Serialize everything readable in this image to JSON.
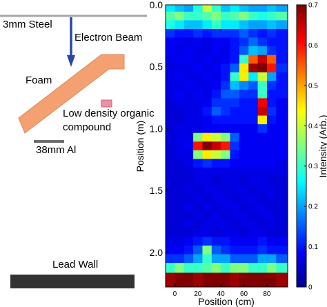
{
  "diagram": {
    "steel_label": "3mm Steel",
    "beam_label": "Electron Beam",
    "foam_label": "Foam",
    "target_label_line1": "Low density organic",
    "target_label_line2": "compound",
    "al_label": "38mm Al",
    "lead_label": "Lead Wall",
    "colors": {
      "steel": "#a6a6a6",
      "beam": "#2a46a8",
      "foam": "#f4a070",
      "target": "#ef8fa4",
      "plate": "#6d6d6d",
      "lead": "#333333"
    }
  },
  "chart_data": {
    "type": "heatmap",
    "xlabel": "Position (cm)",
    "ylabel": "Position (m)",
    "colorbar_label": "Intensity (Arb.)",
    "x_ticks": [
      0,
      20,
      40,
      60,
      80
    ],
    "y_ticks": [
      "0.0",
      "0.5",
      "1.0",
      "1.5",
      "2.0"
    ],
    "colorbar_ticks": [
      "0",
      "0.1",
      "0.2",
      "0.3",
      "0.4",
      "0.5",
      "0.6",
      "0.7"
    ],
    "xlim": [
      -8,
      98
    ],
    "ylim": [
      0,
      2.28
    ],
    "clim": [
      0,
      0.7
    ],
    "colormap": "jet",
    "y_reversed": true,
    "x_columns": [
      -4,
      4,
      12,
      20,
      28,
      36,
      44,
      52,
      60,
      68,
      76,
      84,
      92
    ],
    "y_rows": [
      0.02,
      0.09,
      0.16,
      0.23,
      0.3,
      0.37,
      0.44,
      0.51,
      0.58,
      0.65,
      0.72,
      0.79,
      0.86,
      0.93,
      1.0,
      1.07,
      1.14,
      1.21,
      1.28,
      1.35,
      1.42,
      1.49,
      1.56,
      1.63,
      1.7,
      1.77,
      1.84,
      1.91,
      1.98,
      2.05,
      2.12,
      2.21
    ],
    "intensity": [
      [
        0.25,
        0.22,
        0.2,
        0.28,
        0.4,
        0.3,
        0.22,
        0.25,
        0.22,
        0.2,
        0.2,
        0.22,
        0.2
      ],
      [
        0.32,
        0.35,
        0.3,
        0.3,
        0.32,
        0.35,
        0.3,
        0.32,
        0.35,
        0.3,
        0.28,
        0.3,
        0.32
      ],
      [
        0.28,
        0.25,
        0.22,
        0.22,
        0.25,
        0.3,
        0.25,
        0.25,
        0.22,
        0.2,
        0.2,
        0.22,
        0.2
      ],
      [
        0.12,
        0.1,
        0.1,
        0.12,
        0.1,
        0.12,
        0.12,
        0.12,
        0.15,
        0.12,
        0.1,
        0.12,
        0.1
      ],
      [
        0.08,
        0.08,
        0.07,
        0.08,
        0.07,
        0.08,
        0.08,
        0.1,
        0.12,
        0.16,
        0.12,
        0.1,
        0.1
      ],
      [
        0.08,
        0.07,
        0.08,
        0.07,
        0.07,
        0.08,
        0.07,
        0.1,
        0.15,
        0.22,
        0.2,
        0.12,
        0.1
      ],
      [
        0.07,
        0.08,
        0.08,
        0.07,
        0.08,
        0.07,
        0.08,
        0.1,
        0.3,
        0.55,
        0.65,
        0.55,
        0.1
      ],
      [
        0.07,
        0.07,
        0.07,
        0.08,
        0.07,
        0.08,
        0.1,
        0.15,
        0.45,
        0.68,
        0.7,
        0.6,
        0.12
      ],
      [
        0.07,
        0.08,
        0.07,
        0.07,
        0.08,
        0.07,
        0.1,
        0.3,
        0.45,
        0.25,
        0.4,
        0.2,
        0.1
      ],
      [
        0.07,
        0.07,
        0.08,
        0.07,
        0.07,
        0.08,
        0.12,
        0.22,
        0.18,
        0.15,
        0.3,
        0.12,
        0.1
      ],
      [
        0.07,
        0.08,
        0.07,
        0.08,
        0.07,
        0.1,
        0.15,
        0.15,
        0.12,
        0.12,
        0.3,
        0.1,
        0.1
      ],
      [
        0.06,
        0.07,
        0.07,
        0.07,
        0.08,
        0.12,
        0.12,
        0.12,
        0.1,
        0.1,
        0.62,
        0.1,
        0.08
      ],
      [
        0.06,
        0.06,
        0.07,
        0.07,
        0.1,
        0.15,
        0.12,
        0.1,
        0.1,
        0.1,
        0.65,
        0.12,
        0.08
      ],
      [
        0.06,
        0.06,
        0.07,
        0.07,
        0.08,
        0.1,
        0.1,
        0.1,
        0.1,
        0.1,
        0.45,
        0.1,
        0.08
      ],
      [
        0.06,
        0.07,
        0.07,
        0.07,
        0.08,
        0.08,
        0.08,
        0.08,
        0.08,
        0.08,
        0.12,
        0.08,
        0.08
      ],
      [
        0.06,
        0.07,
        0.07,
        0.35,
        0.45,
        0.4,
        0.35,
        0.15,
        0.08,
        0.08,
        0.08,
        0.08,
        0.08
      ],
      [
        0.06,
        0.07,
        0.08,
        0.6,
        0.7,
        0.65,
        0.6,
        0.12,
        0.08,
        0.08,
        0.08,
        0.08,
        0.08
      ],
      [
        0.06,
        0.07,
        0.07,
        0.35,
        0.45,
        0.4,
        0.35,
        0.1,
        0.08,
        0.08,
        0.08,
        0.08,
        0.08
      ],
      [
        0.06,
        0.06,
        0.07,
        0.1,
        0.12,
        0.1,
        0.1,
        0.08,
        0.08,
        0.08,
        0.08,
        0.08,
        0.07
      ],
      [
        0.06,
        0.06,
        0.06,
        0.07,
        0.07,
        0.07,
        0.07,
        0.07,
        0.07,
        0.07,
        0.07,
        0.07,
        0.07
      ],
      [
        0.06,
        0.06,
        0.06,
        0.07,
        0.07,
        0.06,
        0.07,
        0.07,
        0.06,
        0.07,
        0.07,
        0.06,
        0.06
      ],
      [
        0.06,
        0.06,
        0.07,
        0.06,
        0.07,
        0.07,
        0.06,
        0.07,
        0.07,
        0.06,
        0.07,
        0.07,
        0.06
      ],
      [
        0.06,
        0.06,
        0.06,
        0.07,
        0.06,
        0.07,
        0.07,
        0.06,
        0.07,
        0.07,
        0.06,
        0.07,
        0.06
      ],
      [
        0.06,
        0.06,
        0.07,
        0.06,
        0.07,
        0.06,
        0.07,
        0.07,
        0.06,
        0.07,
        0.07,
        0.06,
        0.06
      ],
      [
        0.06,
        0.06,
        0.06,
        0.07,
        0.06,
        0.07,
        0.06,
        0.07,
        0.07,
        0.06,
        0.07,
        0.07,
        0.06
      ],
      [
        0.06,
        0.06,
        0.07,
        0.06,
        0.07,
        0.07,
        0.07,
        0.06,
        0.07,
        0.07,
        0.06,
        0.07,
        0.06
      ],
      [
        0.06,
        0.06,
        0.06,
        0.07,
        0.07,
        0.06,
        0.07,
        0.07,
        0.06,
        0.07,
        0.07,
        0.06,
        0.06
      ],
      [
        0.07,
        0.07,
        0.08,
        0.1,
        0.12,
        0.1,
        0.1,
        0.08,
        0.08,
        0.08,
        0.1,
        0.08,
        0.08
      ],
      [
        0.08,
        0.08,
        0.1,
        0.15,
        0.35,
        0.15,
        0.12,
        0.1,
        0.1,
        0.1,
        0.12,
        0.1,
        0.1
      ],
      [
        0.12,
        0.12,
        0.15,
        0.2,
        0.3,
        0.2,
        0.2,
        0.15,
        0.15,
        0.15,
        0.2,
        0.2,
        0.15
      ],
      [
        0.3,
        0.35,
        0.3,
        0.3,
        0.32,
        0.35,
        0.3,
        0.35,
        0.35,
        0.3,
        0.3,
        0.35,
        0.3
      ],
      [
        0.68,
        0.7,
        0.7,
        0.68,
        0.7,
        0.7,
        0.7,
        0.68,
        0.7,
        0.7,
        0.7,
        0.7,
        0.68
      ]
    ]
  }
}
